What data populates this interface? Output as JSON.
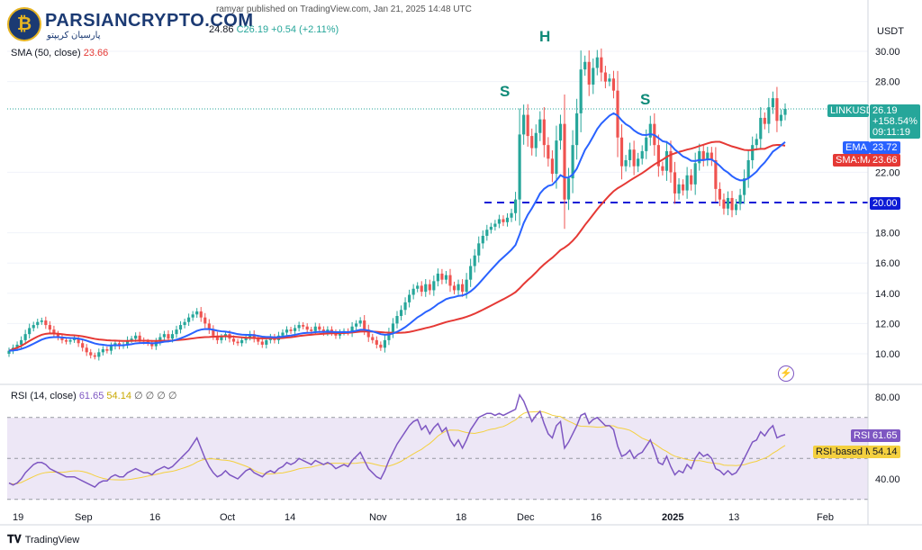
{
  "header": {
    "published_by": "ramyar published on TradingView.com, Jan 21, 2025 14:48 UTC",
    "ohlc_partial": "24.86",
    "close": "C26.19",
    "change": "+0.54 (+2.11%)",
    "sma_label": "SMA (50, close)",
    "sma_value": "23.66"
  },
  "logo": {
    "name": "PARSIANCRYPTO.COM",
    "subtitle": "پارسیان کریپتو"
  },
  "pattern_labels": {
    "left_shoulder": "S",
    "head": "H",
    "right_shoulder": "S"
  },
  "price_axis": {
    "currency": "USDT",
    "ticks": [
      "30.00",
      "28.00",
      "22.00",
      "18.00",
      "16.00",
      "14.00",
      "12.00",
      "10.00"
    ],
    "tick_values": [
      30,
      28,
      22,
      18,
      16,
      14,
      12,
      10
    ],
    "support_tag": "20.00",
    "ticker_tag": "LINKUSDT",
    "ticker_price": "26.19",
    "ticker_change": "+158.54%",
    "ticker_timer": "09:11:19",
    "ema_tag": "EMA",
    "ema_value": "23.72",
    "sma_tag": "SMA:MA",
    "sma_value": "23.66"
  },
  "rsi": {
    "label": "RSI (14, close)",
    "value": "61.65",
    "ma_value": "54.14",
    "extra": "∅ ∅ ∅ ∅",
    "axis_ticks": [
      "80.00",
      "40.00"
    ],
    "tag_rsi": "RSI",
    "tag_rsi_value": "61.65",
    "tag_ma": "RSI-based MA",
    "tag_ma_value": "54.14"
  },
  "time_axis": {
    "labels": [
      "19",
      "Sep",
      "16",
      "Oct",
      "14",
      "Nov",
      "18",
      "Dec",
      "16",
      "2025",
      "13",
      "Feb"
    ]
  },
  "footer": {
    "brand": "TradingView"
  },
  "colors": {
    "up": "#26a69a",
    "down": "#ef5350",
    "ema": "#2962ff",
    "sma": "#e53935",
    "rsi": "#7e57c2",
    "rsi_ma": "#f4d03f",
    "support": "#0d1bd6",
    "band": "#ede7f6"
  },
  "chart_data": {
    "type": "candlestick",
    "symbol": "LINKUSDT",
    "ylim": [
      9,
      31
    ],
    "support_level": 20.0,
    "closes": [
      10.2,
      10.4,
      10.6,
      10.9,
      11.3,
      11.7,
      11.9,
      12.1,
      12.2,
      11.9,
      11.6,
      11.3,
      11.1,
      10.9,
      10.8,
      10.9,
      11.0,
      10.7,
      10.4,
      10.1,
      9.9,
      9.8,
      10.1,
      10.3,
      10.2,
      10.5,
      10.7,
      10.5,
      10.6,
      10.9,
      11.0,
      11.2,
      10.9,
      10.8,
      10.7,
      10.5,
      10.8,
      11.1,
      11.3,
      11.0,
      11.3,
      11.6,
      11.9,
      12.1,
      12.4,
      12.6,
      12.8,
      12.4,
      12.0,
      11.6,
      11.2,
      10.9,
      11.1,
      11.3,
      11.0,
      10.8,
      10.7,
      10.9,
      11.1,
      11.3,
      11.0,
      10.8,
      10.6,
      10.9,
      11.1,
      10.9,
      11.2,
      11.4,
      11.6,
      11.5,
      11.7,
      11.9,
      11.8,
      11.6,
      11.5,
      11.8,
      11.6,
      11.4,
      11.6,
      11.4,
      11.2,
      11.4,
      11.5,
      11.4,
      11.8,
      12.0,
      12.2,
      11.6,
      11.1,
      10.9,
      10.6,
      10.4,
      10.9,
      11.4,
      12.0,
      12.5,
      12.9,
      13.4,
      13.9,
      14.3,
      14.5,
      14.1,
      14.6,
      14.2,
      14.8,
      15.3,
      14.9,
      15.2,
      14.5,
      14.2,
      14.6,
      14.1,
      14.9,
      15.8,
      16.5,
      17.3,
      17.8,
      18.2,
      18.4,
      18.6,
      18.9,
      18.7,
      19.0,
      19.3,
      20.2,
      24.5,
      25.8,
      24.4,
      23.6,
      24.6,
      25.5,
      23.8,
      22.9,
      21.9,
      24.1,
      25.2,
      20.2,
      21.6,
      23.8,
      25.9,
      28.8,
      29.3,
      27.8,
      28.9,
      29.6,
      28.6,
      28.0,
      28.2,
      27.4,
      24.3,
      22.4,
      22.8,
      23.5,
      22.4,
      22.9,
      23.4,
      24.3,
      25.2,
      23.8,
      22.4,
      22.1,
      23.4,
      22.0,
      20.6,
      21.2,
      20.8,
      21.8,
      21.2,
      22.6,
      23.4,
      22.8,
      23.3,
      22.8,
      20.9,
      20.2,
      19.6,
      20.3,
      19.5,
      19.9,
      20.5,
      21.6,
      22.8,
      23.8,
      24.2,
      25.6,
      25.2,
      26.3,
      26.9,
      25.4,
      25.8,
      26.19
    ],
    "rsi_values": [
      38,
      37,
      38,
      40,
      43,
      45,
      47,
      48,
      48,
      47,
      45,
      44,
      43,
      42,
      41,
      41,
      41,
      40,
      39,
      38,
      37,
      36,
      38,
      39,
      39,
      41,
      42,
      41,
      41,
      43,
      44,
      45,
      44,
      43,
      43,
      42,
      44,
      45,
      46,
      45,
      46,
      48,
      50,
      52,
      54,
      57,
      60,
      55,
      50,
      46,
      43,
      41,
      42,
      44,
      42,
      41,
      40,
      42,
      44,
      45,
      43,
      42,
      41,
      43,
      44,
      43,
      45,
      46,
      48,
      47,
      48,
      50,
      49,
      48,
      47,
      49,
      48,
      47,
      48,
      47,
      45,
      46,
      47,
      46,
      49,
      51,
      53,
      49,
      45,
      43,
      41,
      40,
      44,
      49,
      53,
      57,
      60,
      63,
      66,
      68,
      69,
      64,
      66,
      62,
      65,
      67,
      63,
      65,
      59,
      56,
      59,
      55,
      59,
      64,
      67,
      70,
      71,
      72,
      72,
      71,
      72,
      71,
      72,
      73,
      74,
      81,
      78,
      73,
      68,
      71,
      73,
      67,
      62,
      60,
      66,
      68,
      55,
      58,
      62,
      66,
      71,
      72,
      67,
      69,
      70,
      68,
      66,
      66,
      64,
      56,
      51,
      52,
      54,
      50,
      52,
      53,
      56,
      59,
      54,
      48,
      47,
      51,
      46,
      42,
      44,
      43,
      47,
      45,
      50,
      53,
      51,
      52,
      50,
      45,
      44,
      42,
      44,
      42,
      43,
      46,
      50,
      54,
      58,
      59,
      63,
      61,
      64,
      66,
      60,
      61,
      61.65
    ]
  }
}
